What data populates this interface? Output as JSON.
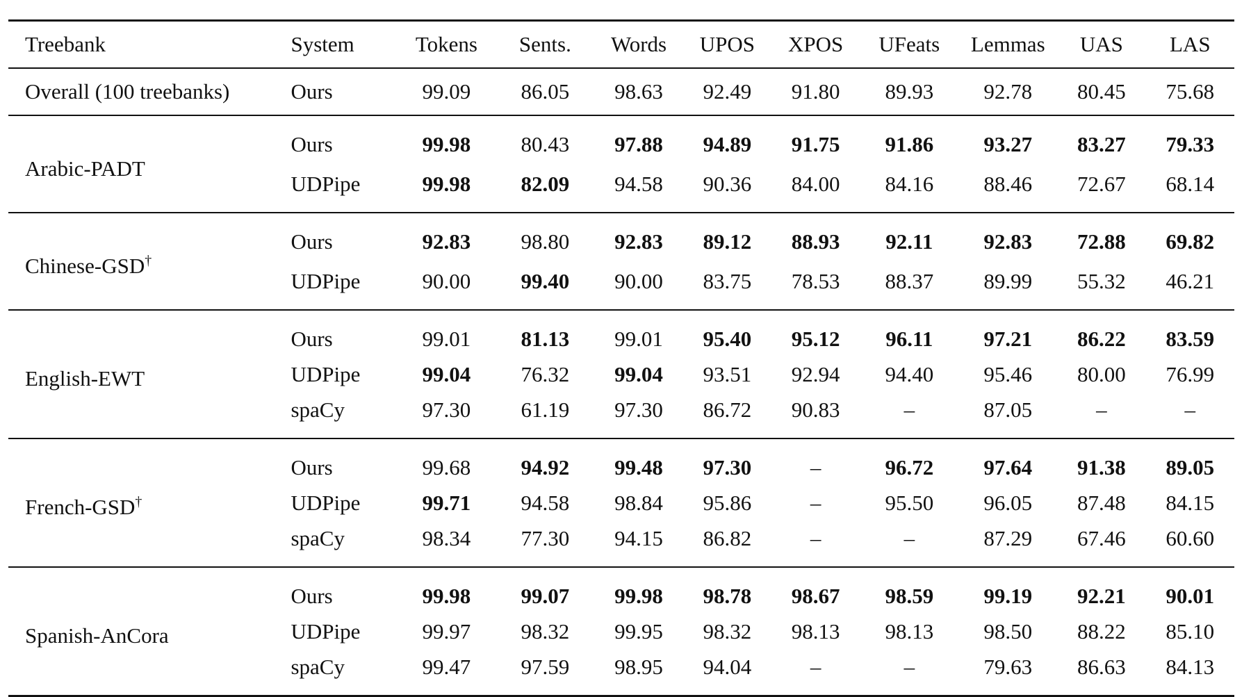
{
  "table": {
    "headers": [
      "Treebank",
      "System",
      "Tokens",
      "Sents.",
      "Words",
      "UPOS",
      "XPOS",
      "UFeats",
      "Lemmas",
      "UAS",
      "LAS"
    ],
    "overall": {
      "treebank": "Overall (100 treebanks)",
      "system": "Ours",
      "values": [
        "99.09",
        "86.05",
        "98.63",
        "92.49",
        "91.80",
        "89.93",
        "92.78",
        "80.45",
        "75.68"
      ]
    },
    "groups": [
      {
        "treebank": "Arabic-PADT",
        "dagger": "",
        "rows": [
          {
            "system": "Ours",
            "values": [
              "99.98",
              "80.43",
              "97.88",
              "94.89",
              "91.75",
              "91.86",
              "93.27",
              "83.27",
              "79.33"
            ],
            "bold": [
              1,
              0,
              1,
              1,
              1,
              1,
              1,
              1,
              1
            ]
          },
          {
            "system": "UDPipe",
            "values": [
              "99.98",
              "82.09",
              "94.58",
              "90.36",
              "84.00",
              "84.16",
              "88.46",
              "72.67",
              "68.14"
            ],
            "bold": [
              1,
              1,
              0,
              0,
              0,
              0,
              0,
              0,
              0
            ]
          }
        ]
      },
      {
        "treebank": "Chinese-GSD",
        "dagger": "†",
        "rows": [
          {
            "system": "Ours",
            "values": [
              "92.83",
              "98.80",
              "92.83",
              "89.12",
              "88.93",
              "92.11",
              "92.83",
              "72.88",
              "69.82"
            ],
            "bold": [
              1,
              0,
              1,
              1,
              1,
              1,
              1,
              1,
              1
            ]
          },
          {
            "system": "UDPipe",
            "values": [
              "90.00",
              "99.40",
              "90.00",
              "83.75",
              "78.53",
              "88.37",
              "89.99",
              "55.32",
              "46.21"
            ],
            "bold": [
              0,
              1,
              0,
              0,
              0,
              0,
              0,
              0,
              0
            ]
          }
        ]
      },
      {
        "treebank": "English-EWT",
        "dagger": "",
        "rows": [
          {
            "system": "Ours",
            "values": [
              "99.01",
              "81.13",
              "99.01",
              "95.40",
              "95.12",
              "96.11",
              "97.21",
              "86.22",
              "83.59"
            ],
            "bold": [
              0,
              1,
              0,
              1,
              1,
              1,
              1,
              1,
              1
            ]
          },
          {
            "system": "UDPipe",
            "values": [
              "99.04",
              "76.32",
              "99.04",
              "93.51",
              "92.94",
              "94.40",
              "95.46",
              "80.00",
              "76.99"
            ],
            "bold": [
              1,
              0,
              1,
              0,
              0,
              0,
              0,
              0,
              0
            ]
          },
          {
            "system": "spaCy",
            "values": [
              "97.30",
              "61.19",
              "97.30",
              "86.72",
              "90.83",
              "–",
              "87.05",
              "–",
              "–"
            ],
            "bold": [
              0,
              0,
              0,
              0,
              0,
              0,
              0,
              0,
              0
            ]
          }
        ]
      },
      {
        "treebank": "French-GSD",
        "dagger": "†",
        "rows": [
          {
            "system": "Ours",
            "values": [
              "99.68",
              "94.92",
              "99.48",
              "97.30",
              "–",
              "96.72",
              "97.64",
              "91.38",
              "89.05"
            ],
            "bold": [
              0,
              1,
              1,
              1,
              0,
              1,
              1,
              1,
              1
            ]
          },
          {
            "system": "UDPipe",
            "values": [
              "99.71",
              "94.58",
              "98.84",
              "95.86",
              "–",
              "95.50",
              "96.05",
              "87.48",
              "84.15"
            ],
            "bold": [
              1,
              0,
              0,
              0,
              0,
              0,
              0,
              0,
              0
            ]
          },
          {
            "system": "spaCy",
            "values": [
              "98.34",
              "77.30",
              "94.15",
              "86.82",
              "–",
              "–",
              "87.29",
              "67.46",
              "60.60"
            ],
            "bold": [
              0,
              0,
              0,
              0,
              0,
              0,
              0,
              0,
              0
            ]
          }
        ]
      },
      {
        "treebank": "Spanish-AnCora",
        "dagger": "",
        "rows": [
          {
            "system": "Ours",
            "values": [
              "99.98",
              "99.07",
              "99.98",
              "98.78",
              "98.67",
              "98.59",
              "99.19",
              "92.21",
              "90.01"
            ],
            "bold": [
              1,
              1,
              1,
              1,
              1,
              1,
              1,
              1,
              1
            ]
          },
          {
            "system": "UDPipe",
            "values": [
              "99.97",
              "98.32",
              "99.95",
              "98.32",
              "98.13",
              "98.13",
              "98.50",
              "88.22",
              "85.10"
            ],
            "bold": [
              0,
              0,
              0,
              0,
              0,
              0,
              0,
              0,
              0
            ]
          },
          {
            "system": "spaCy",
            "values": [
              "99.47",
              "97.59",
              "98.95",
              "94.04",
              "–",
              "–",
              "79.63",
              "86.63",
              "84.13"
            ],
            "bold": [
              0,
              0,
              0,
              0,
              0,
              0,
              0,
              0,
              0
            ]
          }
        ]
      }
    ]
  }
}
